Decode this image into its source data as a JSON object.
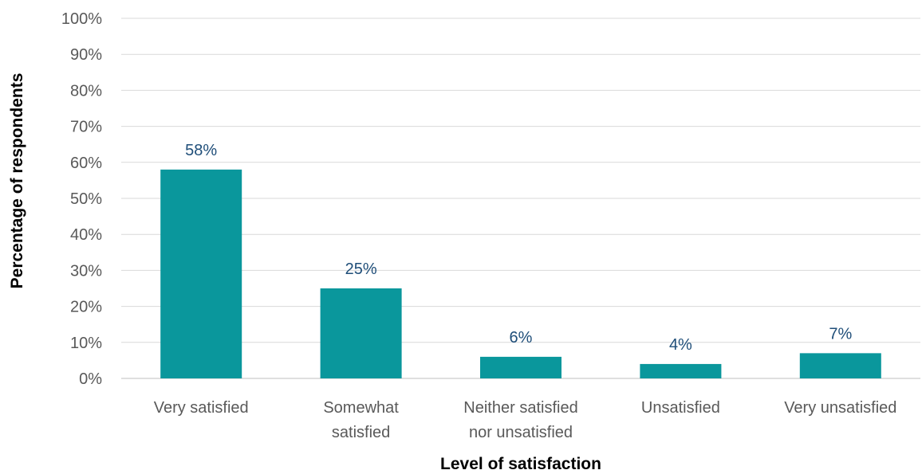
{
  "chart_data": {
    "type": "bar",
    "title": "",
    "xlabel": "Level of satisfaction",
    "ylabel": "Percentage of respondents",
    "categories": [
      [
        "Very satisfied"
      ],
      [
        "Somewhat",
        "satisfied"
      ],
      [
        "Neither satisfied",
        "nor unsatisfied"
      ],
      [
        "Unsatisfied"
      ],
      [
        "Very unsatisfied"
      ]
    ],
    "values": [
      58,
      25,
      6,
      4,
      7
    ],
    "data_labels": [
      "58%",
      "25%",
      "6%",
      "4%",
      "7%"
    ],
    "ylim": [
      0,
      100
    ],
    "yticks": [
      0,
      10,
      20,
      30,
      40,
      50,
      60,
      70,
      80,
      90,
      100
    ],
    "ytick_labels": [
      "0%",
      "10%",
      "20%",
      "30%",
      "40%",
      "50%",
      "60%",
      "70%",
      "80%",
      "90%",
      "100%"
    ],
    "grid": true,
    "legend": "none",
    "bar_color": "#0a979c",
    "data_label_color": "#1f4e79"
  }
}
